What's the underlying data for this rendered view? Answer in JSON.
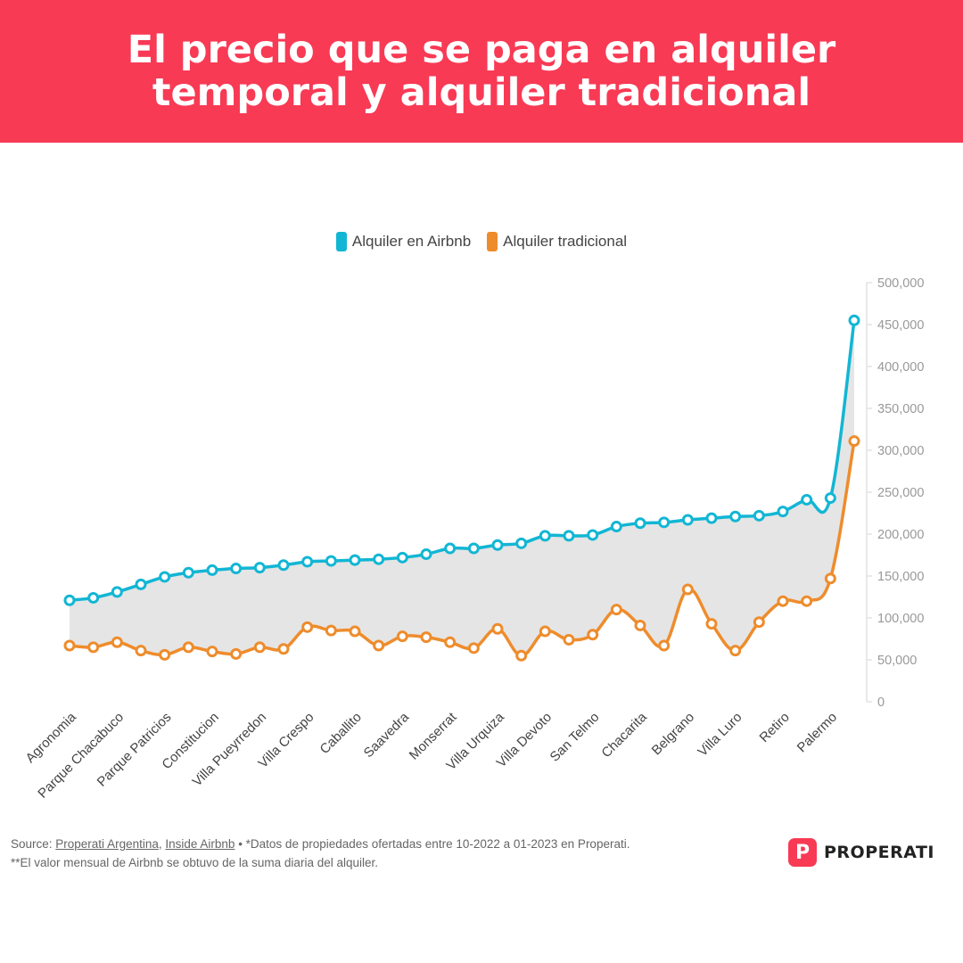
{
  "header": {
    "title": "El precio que se paga en alquiler temporal y alquiler tradicional"
  },
  "colors": {
    "header_bg": "#f83a55",
    "airbnb": "#12b6d4",
    "tradicional": "#ee8c2c",
    "fill": "#e5e5e5",
    "axis_text": "#999999"
  },
  "chart_data": {
    "type": "line",
    "legend": [
      "Alquiler en Airbnb",
      "Alquiler tradicional"
    ],
    "legend_position": "top-center",
    "y_axis_position": "right",
    "ylim": [
      0,
      500000
    ],
    "yticks": [
      "0",
      "50,000",
      "100,000",
      "150,000",
      "200,000",
      "250,000",
      "300,000",
      "350,000",
      "400,000",
      "450,000",
      "500,000"
    ],
    "x_labels_shown": [
      "Agronomia",
      "Parque Chacabuco",
      "Parque Patricios",
      "Constitucion",
      "Villa Pueyrredon",
      "Villa Crespo",
      "Caballito",
      "Saavedra",
      "Monserrat",
      "Villa Urquiza",
      "Villa Devoto",
      "San Telmo",
      "Chacarita",
      "Belgrano",
      "Villa Luro",
      "Retiro",
      "Palermo"
    ],
    "label_every": 2,
    "fill_between": true,
    "series": [
      {
        "name": "Alquiler en Airbnb",
        "values": [
          121000,
          124000,
          131000,
          140000,
          149000,
          154000,
          157000,
          159000,
          160000,
          163000,
          167000,
          168000,
          169000,
          170000,
          172000,
          176000,
          183000,
          183000,
          187000,
          189000,
          198000,
          198000,
          199000,
          209000,
          213000,
          214000,
          217000,
          219000,
          221000,
          222000,
          227000,
          241000,
          243000,
          455000
        ]
      },
      {
        "name": "Alquiler tradicional",
        "values": [
          67000,
          65000,
          71000,
          61000,
          56000,
          65000,
          60000,
          57000,
          65000,
          63000,
          89000,
          85000,
          84000,
          67000,
          78000,
          77000,
          71000,
          64000,
          87000,
          55000,
          84000,
          74000,
          80000,
          110000,
          91000,
          67000,
          134000,
          93000,
          61000,
          95000,
          120000,
          120000,
          147000,
          311000
        ]
      }
    ]
  },
  "footer": {
    "source_prefix": "Source: ",
    "source_link_1": "Properati Argentina",
    "source_sep": ", ",
    "source_link_2": "Inside Airbnb",
    "note_1": " • *Datos de propiedades ofertadas entre 10-2022 a 01-2023 en Properati.",
    "note_2": "**El valor mensual de Airbnb se obtuvo de la suma diaria del alquiler."
  },
  "brand": {
    "mark": "P",
    "name": "PROPERATI"
  }
}
